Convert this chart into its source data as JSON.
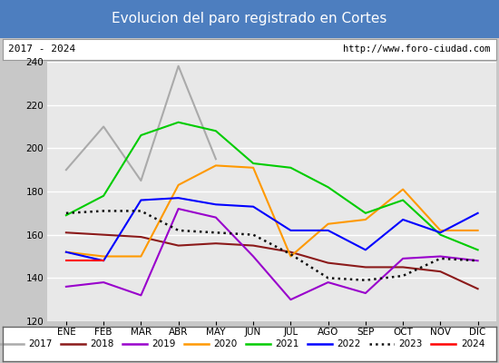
{
  "title": "Evolucion del paro registrado en Cortes",
  "subtitle_left": "2017 - 2024",
  "subtitle_right": "http://www.foro-ciudad.com",
  "months": [
    "ENE",
    "FEB",
    "MAR",
    "ABR",
    "MAY",
    "JUN",
    "JUL",
    "AGO",
    "SEP",
    "OCT",
    "NOV",
    "DIC"
  ],
  "ylim": [
    120,
    240
  ],
  "yticks": [
    120,
    140,
    160,
    180,
    200,
    220,
    240
  ],
  "series": [
    {
      "year": "2017",
      "color": "#aaaaaa",
      "linestyle": "-",
      "data": [
        190,
        210,
        185,
        238,
        195,
        null,
        null,
        null,
        null,
        null,
        null,
        null
      ]
    },
    {
      "year": "2018",
      "color": "#8b1a1a",
      "linestyle": "-",
      "data": [
        161,
        160,
        159,
        155,
        156,
        155,
        152,
        147,
        145,
        145,
        143,
        135
      ]
    },
    {
      "year": "2019",
      "color": "#9900cc",
      "linestyle": "-",
      "data": [
        136,
        138,
        132,
        172,
        168,
        150,
        130,
        138,
        133,
        149,
        150,
        148
      ]
    },
    {
      "year": "2020",
      "color": "#ff9900",
      "linestyle": "-",
      "data": [
        152,
        150,
        150,
        183,
        192,
        191,
        150,
        165,
        167,
        181,
        162,
        162
      ]
    },
    {
      "year": "2021",
      "color": "#00cc00",
      "linestyle": "-",
      "data": [
        169,
        178,
        206,
        212,
        208,
        193,
        191,
        182,
        170,
        176,
        160,
        153
      ]
    },
    {
      "year": "2022",
      "color": "#0000ff",
      "linestyle": "-",
      "data": [
        152,
        148,
        176,
        177,
        174,
        173,
        162,
        162,
        153,
        167,
        161,
        170
      ]
    },
    {
      "year": "2023",
      "color": "#111111",
      "linestyle": ":",
      "data": [
        170,
        171,
        171,
        162,
        161,
        160,
        151,
        140,
        139,
        141,
        149,
        148
      ]
    },
    {
      "year": "2024",
      "color": "#ff0000",
      "linestyle": "-",
      "data": [
        148,
        148,
        null,
        null,
        null,
        null,
        null,
        null,
        null,
        null,
        null,
        null
      ]
    }
  ],
  "fig_bg": "#c8c8c8",
  "plot_bg": "#e8e8e8",
  "title_bg": "#4d7ebf",
  "title_fg": "#ffffff",
  "header_bg": "#ffffff",
  "legend_bg": "#ffffff",
  "grid_color": "#ffffff",
  "title_fontsize": 11,
  "tick_fontsize": 7.5,
  "legend_fontsize": 7.5,
  "linewidth": 1.5
}
